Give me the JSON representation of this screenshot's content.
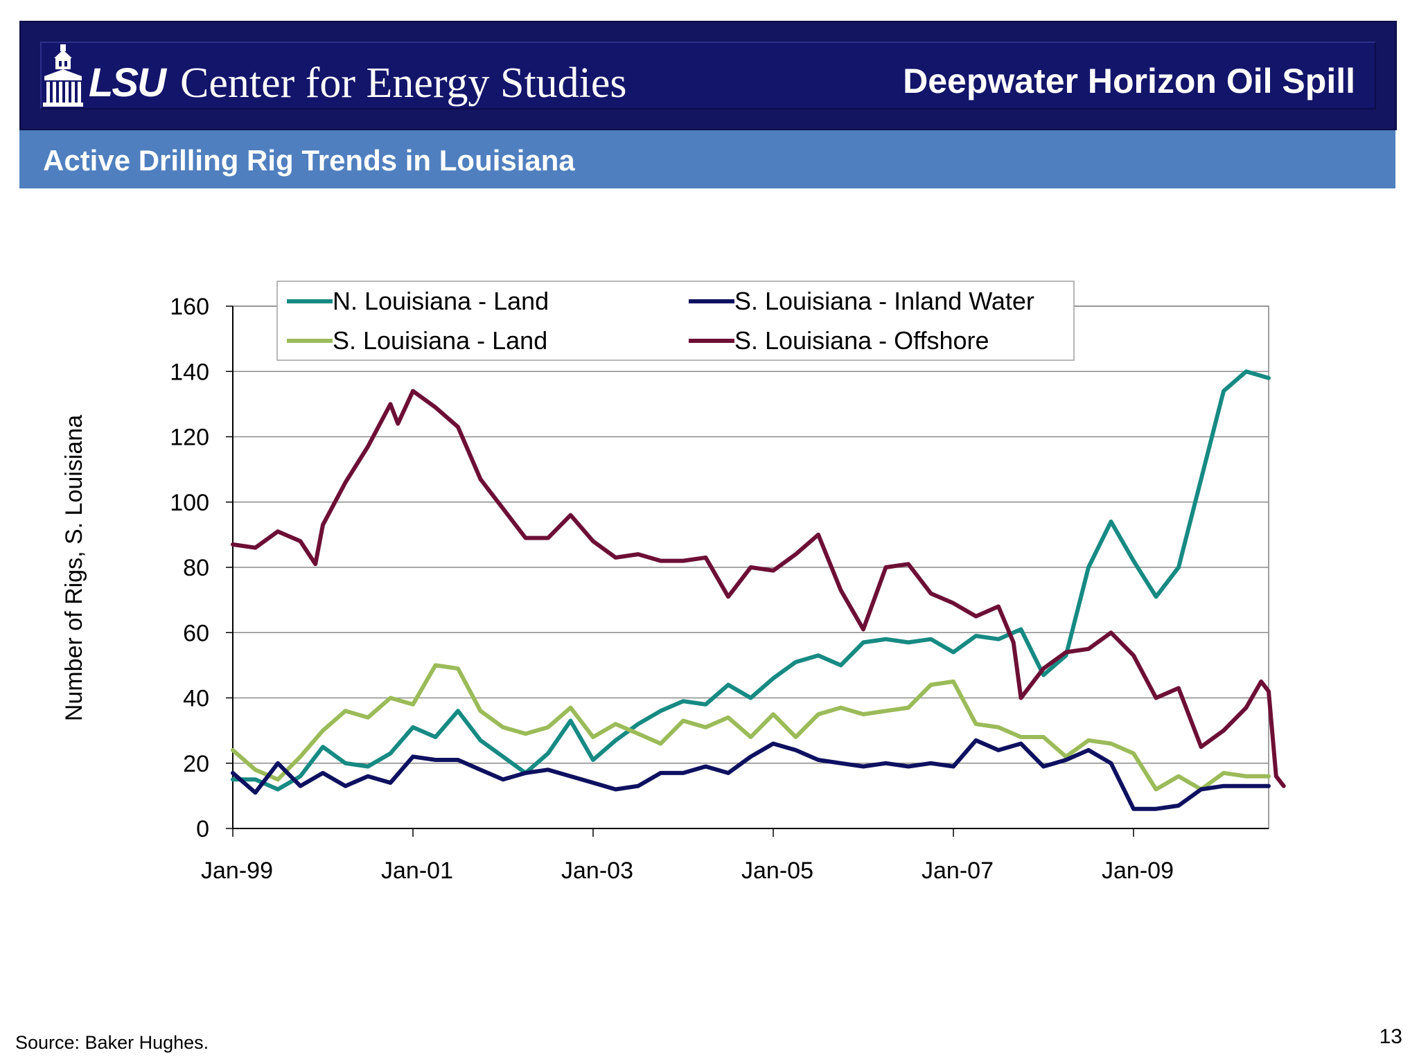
{
  "header": {
    "logo_text": "LSU",
    "org_name": "Center for Energy Studies",
    "doc_title": "Deepwater Horizon Oil Spill",
    "slide_title": "Active Drilling Rig Trends in Louisiana"
  },
  "footer": {
    "source": "Source:  Baker Hughes.",
    "page_number": "13"
  },
  "colors": {
    "header_bg": "#13156a",
    "subheader_bg": "#4f7fbf"
  },
  "chart_data": {
    "type": "line",
    "title": "",
    "xlabel": "",
    "ylabel": "Number of Rigs, S. Louisiana",
    "ylim": [
      0,
      160
    ],
    "yticks": [
      0,
      20,
      40,
      60,
      80,
      100,
      120,
      140,
      160
    ],
    "xlim": [
      "1999-01",
      "2010-07"
    ],
    "xticks": [
      "Jan-99",
      "Jan-01",
      "Jan-03",
      "Jan-05",
      "Jan-07",
      "Jan-09"
    ],
    "grid": "horizontal",
    "legend": "top",
    "series": [
      {
        "name": "N. Louisiana -  Land",
        "color": "#168a83",
        "points": [
          [
            "1999-01",
            15
          ],
          [
            "1999-04",
            15
          ],
          [
            "1999-07",
            12
          ],
          [
            "1999-10",
            16
          ],
          [
            "2000-01",
            25
          ],
          [
            "2000-04",
            20
          ],
          [
            "2000-07",
            19
          ],
          [
            "2000-10",
            23
          ],
          [
            "2001-01",
            31
          ],
          [
            "2001-04",
            28
          ],
          [
            "2001-07",
            36
          ],
          [
            "2001-10",
            27
          ],
          [
            "2002-01",
            22
          ],
          [
            "2002-04",
            17
          ],
          [
            "2002-07",
            23
          ],
          [
            "2002-10",
            33
          ],
          [
            "2003-01",
            21
          ],
          [
            "2003-04",
            27
          ],
          [
            "2003-07",
            32
          ],
          [
            "2003-10",
            36
          ],
          [
            "2004-01",
            39
          ],
          [
            "2004-04",
            38
          ],
          [
            "2004-07",
            44
          ],
          [
            "2004-10",
            40
          ],
          [
            "2005-01",
            46
          ],
          [
            "2005-04",
            51
          ],
          [
            "2005-07",
            53
          ],
          [
            "2005-10",
            50
          ],
          [
            "2006-01",
            57
          ],
          [
            "2006-04",
            58
          ],
          [
            "2006-07",
            57
          ],
          [
            "2006-10",
            58
          ],
          [
            "2007-01",
            54
          ],
          [
            "2007-04",
            59
          ],
          [
            "2007-07",
            58
          ],
          [
            "2007-10",
            61
          ],
          [
            "2008-01",
            47
          ],
          [
            "2008-04",
            53
          ],
          [
            "2008-07",
            80
          ],
          [
            "2008-10",
            94
          ],
          [
            "2009-01",
            82
          ],
          [
            "2009-04",
            71
          ],
          [
            "2009-07",
            80
          ],
          [
            "2009-10",
            107
          ],
          [
            "2010-01",
            134
          ],
          [
            "2010-04",
            140
          ],
          [
            "2010-07",
            138
          ]
        ]
      },
      {
        "name": "S. Louisiana - Inland Water",
        "color": "#0e1060",
        "points": [
          [
            "1999-01",
            17
          ],
          [
            "1999-04",
            11
          ],
          [
            "1999-07",
            20
          ],
          [
            "1999-10",
            13
          ],
          [
            "2000-01",
            17
          ],
          [
            "2000-04",
            13
          ],
          [
            "2000-07",
            16
          ],
          [
            "2000-10",
            14
          ],
          [
            "2001-01",
            22
          ],
          [
            "2001-04",
            21
          ],
          [
            "2001-07",
            21
          ],
          [
            "2001-10",
            18
          ],
          [
            "2002-01",
            15
          ],
          [
            "2002-04",
            17
          ],
          [
            "2002-07",
            18
          ],
          [
            "2002-10",
            16
          ],
          [
            "2003-01",
            14
          ],
          [
            "2003-04",
            12
          ],
          [
            "2003-07",
            13
          ],
          [
            "2003-10",
            17
          ],
          [
            "2004-01",
            17
          ],
          [
            "2004-04",
            19
          ],
          [
            "2004-07",
            17
          ],
          [
            "2004-10",
            22
          ],
          [
            "2005-01",
            26
          ],
          [
            "2005-04",
            24
          ],
          [
            "2005-07",
            21
          ],
          [
            "2005-10",
            20
          ],
          [
            "2006-01",
            19
          ],
          [
            "2006-04",
            20
          ],
          [
            "2006-07",
            19
          ],
          [
            "2006-10",
            20
          ],
          [
            "2007-01",
            19
          ],
          [
            "2007-04",
            27
          ],
          [
            "2007-07",
            24
          ],
          [
            "2007-10",
            26
          ],
          [
            "2008-01",
            19
          ],
          [
            "2008-04",
            21
          ],
          [
            "2008-07",
            24
          ],
          [
            "2008-10",
            20
          ],
          [
            "2009-01",
            6
          ],
          [
            "2009-04",
            6
          ],
          [
            "2009-07",
            7
          ],
          [
            "2009-10",
            12
          ],
          [
            "2010-01",
            13
          ],
          [
            "2010-04",
            13
          ],
          [
            "2010-07",
            13
          ]
        ]
      },
      {
        "name": "S. Louisiana - Land",
        "color": "#9bbb59",
        "points": [
          [
            "1999-01",
            24
          ],
          [
            "1999-04",
            18
          ],
          [
            "1999-07",
            15
          ],
          [
            "1999-10",
            22
          ],
          [
            "2000-01",
            30
          ],
          [
            "2000-04",
            36
          ],
          [
            "2000-07",
            34
          ],
          [
            "2000-10",
            40
          ],
          [
            "2001-01",
            38
          ],
          [
            "2001-04",
            50
          ],
          [
            "2001-07",
            49
          ],
          [
            "2001-10",
            36
          ],
          [
            "2002-01",
            31
          ],
          [
            "2002-04",
            29
          ],
          [
            "2002-07",
            31
          ],
          [
            "2002-10",
            37
          ],
          [
            "2003-01",
            28
          ],
          [
            "2003-04",
            32
          ],
          [
            "2003-07",
            29
          ],
          [
            "2003-10",
            26
          ],
          [
            "2004-01",
            33
          ],
          [
            "2004-04",
            31
          ],
          [
            "2004-07",
            34
          ],
          [
            "2004-10",
            28
          ],
          [
            "2005-01",
            35
          ],
          [
            "2005-04",
            28
          ],
          [
            "2005-07",
            35
          ],
          [
            "2005-10",
            37
          ],
          [
            "2006-01",
            35
          ],
          [
            "2006-04",
            36
          ],
          [
            "2006-07",
            37
          ],
          [
            "2006-10",
            44
          ],
          [
            "2007-01",
            45
          ],
          [
            "2007-04",
            32
          ],
          [
            "2007-07",
            31
          ],
          [
            "2007-10",
            28
          ],
          [
            "2008-01",
            28
          ],
          [
            "2008-04",
            22
          ],
          [
            "2008-07",
            27
          ],
          [
            "2008-10",
            26
          ],
          [
            "2009-01",
            23
          ],
          [
            "2009-04",
            12
          ],
          [
            "2009-07",
            16
          ],
          [
            "2009-10",
            12
          ],
          [
            "2010-01",
            17
          ],
          [
            "2010-04",
            16
          ],
          [
            "2010-07",
            16
          ]
        ]
      },
      {
        "name": "S. Louisiana - Offshore",
        "color": "#6d0f35",
        "points": [
          [
            "1999-01",
            87
          ],
          [
            "1999-04",
            86
          ],
          [
            "1999-07",
            91
          ],
          [
            "1999-10",
            88
          ],
          [
            "1999-12",
            81
          ],
          [
            "2000-01",
            93
          ],
          [
            "2000-04",
            106
          ],
          [
            "2000-07",
            117
          ],
          [
            "2000-10",
            130
          ],
          [
            "2000-11",
            124
          ],
          [
            "2001-01",
            134
          ],
          [
            "2001-04",
            129
          ],
          [
            "2001-07",
            123
          ],
          [
            "2001-10",
            107
          ],
          [
            "2002-01",
            98
          ],
          [
            "2002-04",
            89
          ],
          [
            "2002-07",
            89
          ],
          [
            "2002-10",
            96
          ],
          [
            "2003-01",
            88
          ],
          [
            "2003-04",
            83
          ],
          [
            "2003-07",
            84
          ],
          [
            "2003-10",
            82
          ],
          [
            "2004-01",
            82
          ],
          [
            "2004-04",
            83
          ],
          [
            "2004-07",
            71
          ],
          [
            "2004-10",
            80
          ],
          [
            "2005-01",
            79
          ],
          [
            "2005-04",
            84
          ],
          [
            "2005-07",
            90
          ],
          [
            "2005-10",
            73
          ],
          [
            "2006-01",
            61
          ],
          [
            "2006-04",
            80
          ],
          [
            "2006-07",
            81
          ],
          [
            "2006-10",
            72
          ],
          [
            "2007-01",
            69
          ],
          [
            "2007-04",
            65
          ],
          [
            "2007-07",
            68
          ],
          [
            "2007-09",
            57
          ],
          [
            "2007-10",
            40
          ],
          [
            "2008-01",
            49
          ],
          [
            "2008-04",
            54
          ],
          [
            "2008-07",
            55
          ],
          [
            "2008-10",
            60
          ],
          [
            "2009-01",
            53
          ],
          [
            "2009-04",
            40
          ],
          [
            "2009-07",
            43
          ],
          [
            "2009-10",
            25
          ],
          [
            "2010-01",
            30
          ],
          [
            "2010-04",
            37
          ],
          [
            "2010-06",
            45
          ],
          [
            "2010-07",
            42
          ],
          [
            "2010-08",
            16
          ],
          [
            "2010-09",
            13
          ]
        ]
      }
    ]
  }
}
